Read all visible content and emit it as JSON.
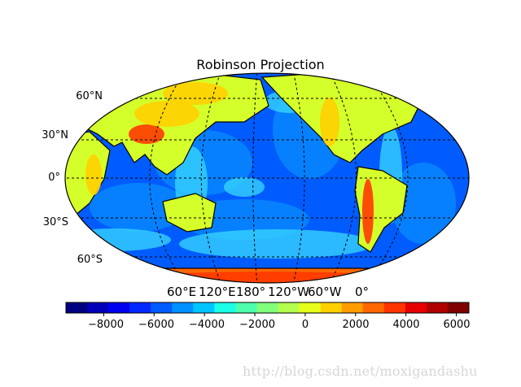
{
  "title": "Robinson Projection",
  "lat_labels": [
    "60°N",
    "30°N",
    "0°",
    "30°S",
    "60°S"
  ],
  "lon_labels": [
    "60°E",
    "120°E",
    "180°",
    "120°W",
    "60°W",
    "0°"
  ],
  "colorbar": {
    "ticks": [
      "−8000",
      "−6000",
      "−4000",
      "−2000",
      "0",
      "2000",
      "4000",
      "6000"
    ],
    "range": [
      -9500,
      6500
    ],
    "colormap": [
      "#000080",
      "#0000b8",
      "#0000f1",
      "#0028ff",
      "#005cff",
      "#0090ff",
      "#00c4ff",
      "#1affe6",
      "#4dffaa",
      "#80ff7b",
      "#b3ff4d",
      "#e6ff1a",
      "#ffd000",
      "#ff9c00",
      "#ff6800",
      "#ff3400",
      "#e60000",
      "#b00000",
      "#800000"
    ]
  },
  "colors": {
    "ocean_deep": "#005cff",
    "ocean_mid": "#0a8cff",
    "shelf": "#39d8ff",
    "land_low": "#d5ff2a",
    "land_mid": "#ffd000",
    "land_high": "#ff3a00",
    "antarctica": "#ff6a00",
    "coast": "#000000"
  },
  "watermark": "http://blog.csdn.net/moxigandashu"
}
